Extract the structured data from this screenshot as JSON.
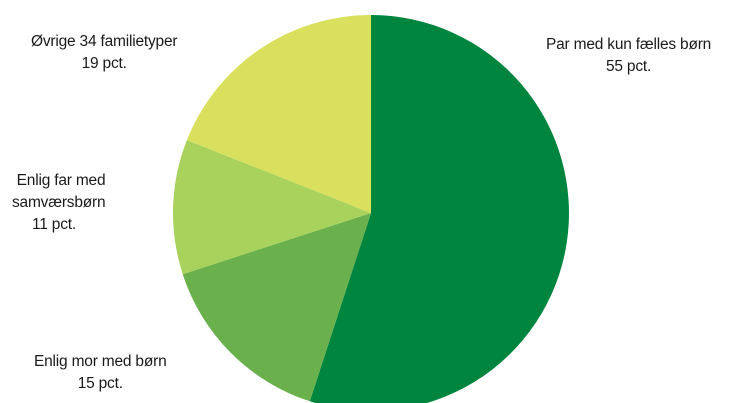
{
  "chart_data": {
    "type": "pie",
    "start_angle_deg": 0,
    "direction": "clockwise",
    "slices": [
      {
        "key": "par",
        "label": "Par med kun fælles børn",
        "value": 55,
        "value_label": "55 pct.",
        "color": "#00853f"
      },
      {
        "key": "mor",
        "label": "Enlig mor med børn",
        "value": 15,
        "value_label": "15 pct.",
        "color": "#6ab04c"
      },
      {
        "key": "far",
        "label": "Enlig far med samværsbørn",
        "label_lines": [
          "Enlig far med",
          "samværsbørn"
        ],
        "value": 11,
        "value_label": "11 pct.",
        "color": "#a8d25b"
      },
      {
        "key": "ovrige",
        "label": "Øvrige 34 familietyper",
        "value": 19,
        "value_label": "19 pct.",
        "color": "#d8e05e"
      }
    ],
    "legend": "none",
    "data_labels": "outside"
  }
}
